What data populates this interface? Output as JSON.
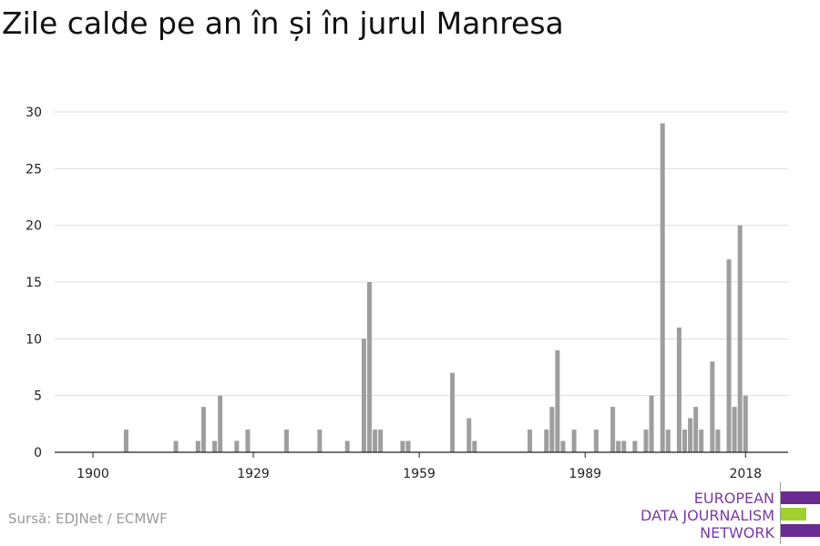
{
  "title": "Zile calde pe an în și în jurul Manresa",
  "source": "Sursă: EDJNet / ECMWF",
  "logo": {
    "lines": [
      "EUROPEAN",
      "DATA JOURNALISM",
      "NETWORK"
    ],
    "colors": {
      "purple": "#6b2a8f",
      "green": "#9ed12c"
    }
  },
  "colors": {
    "bar": "#9e9e9e",
    "grid": "#dddddd",
    "axis": "#222222"
  },
  "chart_data": {
    "type": "bar",
    "title": "Zile calde pe an în și în jurul Manresa",
    "xlabel": "",
    "ylabel": "",
    "ylim": [
      0,
      30
    ],
    "xlim": [
      1900,
      2021
    ],
    "yticks": [
      0,
      5,
      10,
      15,
      20,
      25,
      30
    ],
    "xticks": [
      1900,
      1929,
      1959,
      1989,
      2018
    ],
    "grid": true,
    "x": [
      1906,
      1915,
      1919,
      1920,
      1922,
      1923,
      1926,
      1928,
      1935,
      1941,
      1946,
      1949,
      1950,
      1951,
      1952,
      1956,
      1957,
      1965,
      1968,
      1969,
      1979,
      1982,
      1983,
      1984,
      1985,
      1987,
      1991,
      1994,
      1995,
      1996,
      1998,
      2000,
      2001,
      2003,
      2004,
      2006,
      2007,
      2008,
      2009,
      2010,
      2012,
      2013,
      2015,
      2016,
      2017,
      2018
    ],
    "values": [
      2,
      1,
      1,
      4,
      1,
      5,
      1,
      2,
      2,
      2,
      1,
      10,
      15,
      2,
      2,
      1,
      1,
      7,
      3,
      1,
      2,
      2,
      4,
      9,
      1,
      2,
      2,
      4,
      1,
      1,
      1,
      2,
      5,
      29,
      2,
      11,
      2,
      3,
      4,
      2,
      8,
      2,
      17,
      4,
      20,
      5
    ]
  }
}
